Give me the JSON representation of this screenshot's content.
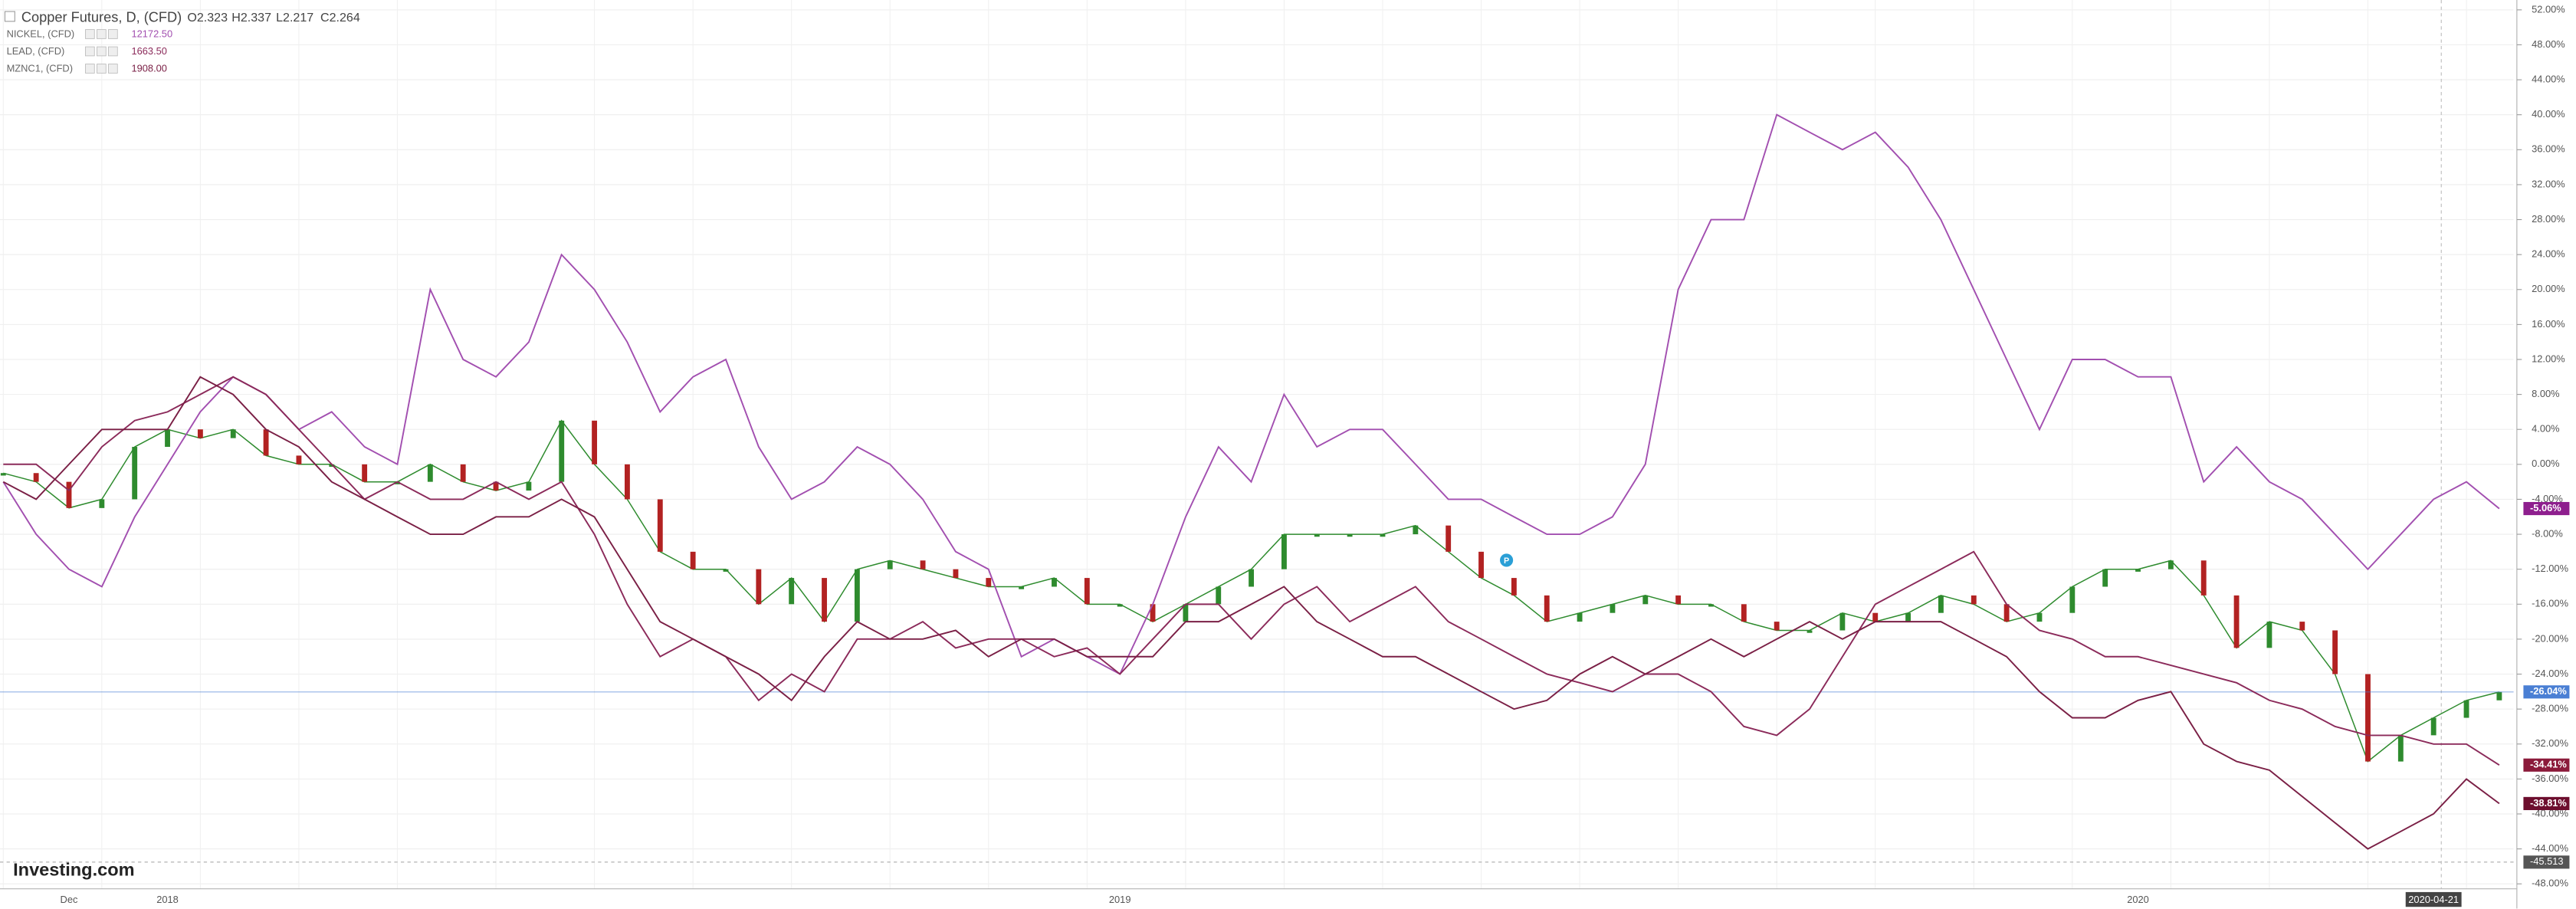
{
  "chart_data": {
    "type": "line",
    "title": "Copper Futures, D, (CFD)",
    "ohlc": [
      "O2.323",
      "H2.337",
      "L2.217",
      "C2.264"
    ],
    "watermark": "Investing.com",
    "categories": [
      null,
      null,
      "Dec",
      null,
      null,
      "2018",
      null,
      null,
      null,
      null,
      null,
      null,
      null,
      null,
      null,
      null,
      null,
      null,
      null,
      null,
      null,
      null,
      null,
      null,
      null,
      null,
      null,
      null,
      null,
      null,
      null,
      null,
      null,
      null,
      "2019",
      null,
      null,
      null,
      null,
      null,
      null,
      null,
      null,
      null,
      null,
      null,
      null,
      null,
      null,
      null,
      null,
      null,
      null,
      null,
      null,
      null,
      null,
      null,
      null,
      null,
      null,
      null,
      null,
      null,
      null,
      "2020",
      null,
      null,
      null,
      null,
      null,
      null,
      null,
      null,
      "2020-04-21",
      null,
      null
    ],
    "ylim": [
      -48,
      52
    ],
    "yticks": [
      {
        "value": 52,
        "label": "52.00%"
      },
      {
        "value": 48,
        "label": "48.00%"
      },
      {
        "value": 44,
        "label": "44.00%"
      },
      {
        "value": 40,
        "label": "40.00%"
      },
      {
        "value": 36,
        "label": "36.00%"
      },
      {
        "value": 32,
        "label": "32.00%"
      },
      {
        "value": 28,
        "label": "28.00%"
      },
      {
        "value": 24,
        "label": "24.00%"
      },
      {
        "value": 20,
        "label": "20.00%"
      },
      {
        "value": 16,
        "label": "16.00%"
      },
      {
        "value": 12,
        "label": "12.00%"
      },
      {
        "value": 8,
        "label": "8.00%"
      },
      {
        "value": 4,
        "label": "4.00%"
      },
      {
        "value": 0,
        "label": "0.00%"
      },
      {
        "value": -4,
        "label": "-4.00%"
      },
      {
        "value": -8,
        "label": "-8.00%"
      },
      {
        "value": -12,
        "label": "-12.00%"
      },
      {
        "value": -16,
        "label": "-16.00%"
      },
      {
        "value": -20,
        "label": "-20.00%"
      },
      {
        "value": -24,
        "label": "-24.00%"
      },
      {
        "value": -28,
        "label": "-28.00%"
      },
      {
        "value": -32,
        "label": "-32.00%"
      },
      {
        "value": -36,
        "label": "-36.00%"
      },
      {
        "value": -40,
        "label": "-40.00%"
      },
      {
        "value": -44,
        "label": "-44.00%"
      },
      {
        "value": -48,
        "label": "-48.00%"
      }
    ],
    "grid": true,
    "hline": -45.513,
    "series": [
      {
        "name": "Copper Futures, D, (CFD)",
        "color": "#2e8b2e",
        "down_color": "#b22222",
        "label_color": "#4a7fd4",
        "main": true,
        "last_value_label": "-26.04%",
        "values": [
          -1,
          -2,
          -5,
          -4,
          2,
          4,
          3,
          4,
          1,
          0,
          0,
          -2,
          -2,
          0,
          -2,
          -3,
          -2,
          5,
          0,
          -4,
          -10,
          -12,
          -12,
          -16,
          -13,
          -18,
          -12,
          -11,
          -12,
          -13,
          -14,
          -14,
          -13,
          -16,
          -16,
          -18,
          -16,
          -14,
          -12,
          -8,
          -8,
          -8,
          -8,
          -7,
          -10,
          -13,
          -15,
          -18,
          -17,
          -16,
          -15,
          -16,
          -16,
          -18,
          -19,
          -19,
          -17,
          -18,
          -17,
          -15,
          -16,
          -18,
          -17,
          -14,
          -12,
          -12,
          -11,
          -15,
          -21,
          -18,
          -19,
          -24,
          -34,
          -31,
          -29,
          -27,
          -26.04
        ]
      },
      {
        "name": "NICKEL, (CFD)",
        "price": "12172.50",
        "color": "#a24fb0",
        "label_color": "#8e1f8e",
        "last_value_label": "-5.06%",
        "values": [
          -2,
          -8,
          -12,
          -14,
          -6,
          0,
          6,
          10,
          8,
          4,
          6,
          2,
          0,
          20,
          12,
          10,
          14,
          24,
          20,
          14,
          6,
          10,
          12,
          2,
          -4,
          -2,
          2,
          0,
          -4,
          -10,
          -12,
          -22,
          -20,
          -22,
          -24,
          -16,
          -6,
          2,
          -2,
          8,
          2,
          4,
          4,
          0,
          -4,
          -4,
          -6,
          -8,
          -8,
          -6,
          0,
          20,
          28,
          28,
          40,
          38,
          36,
          38,
          34,
          28,
          20,
          12,
          4,
          12,
          12,
          10,
          10,
          -2,
          2,
          -2,
          -4,
          -8,
          -12,
          -8,
          -4,
          -2,
          -5.06
        ]
      },
      {
        "name": "LEAD, (CFD)",
        "price": "1663.50",
        "color": "#8b2a5a",
        "label_color": "#8b1a3a",
        "last_value_label": "-34.41%",
        "values": [
          0,
          0,
          -3,
          2,
          5,
          6,
          8,
          10,
          8,
          4,
          0,
          -4,
          -2,
          -4,
          -4,
          -2,
          -4,
          -2,
          -8,
          -16,
          -22,
          -20,
          -22,
          -27,
          -24,
          -26,
          -20,
          -20,
          -18,
          -21,
          -20,
          -20,
          -22,
          -21,
          -24,
          -20,
          -16,
          -16,
          -20,
          -16,
          -14,
          -18,
          -16,
          -14,
          -18,
          -20,
          -22,
          -24,
          -25,
          -26,
          -24,
          -24,
          -26,
          -30,
          -31,
          -28,
          -22,
          -16,
          -14,
          -12,
          -10,
          -16,
          -19,
          -20,
          -22,
          -22,
          -23,
          -24,
          -25,
          -27,
          -28,
          -30,
          -31,
          -31,
          -32,
          -32,
          -34.41
        ]
      },
      {
        "name": "MZNC1, (CFD)",
        "price": "1908.00",
        "color": "#7a1f45",
        "label_color": "#6d0e2e",
        "last_value_label": "-38.81%",
        "values": [
          -2,
          -4,
          0,
          4,
          4,
          4,
          10,
          8,
          4,
          2,
          -2,
          -4,
          -6,
          -8,
          -8,
          -6,
          -6,
          -4,
          -6,
          -12,
          -18,
          -20,
          -22,
          -24,
          -27,
          -22,
          -18,
          -20,
          -20,
          -19,
          -22,
          -20,
          -20,
          -22,
          -22,
          -22,
          -18,
          -18,
          -16,
          -14,
          -18,
          -20,
          -22,
          -22,
          -24,
          -26,
          -28,
          -27,
          -24,
          -22,
          -24,
          -22,
          -20,
          -22,
          -20,
          -18,
          -20,
          -18,
          -18,
          -18,
          -20,
          -22,
          -26,
          -29,
          -29,
          -27,
          -26,
          -32,
          -34,
          -35,
          -38,
          -41,
          -44,
          -42,
          -40,
          -36,
          -38.81
        ]
      }
    ]
  }
}
